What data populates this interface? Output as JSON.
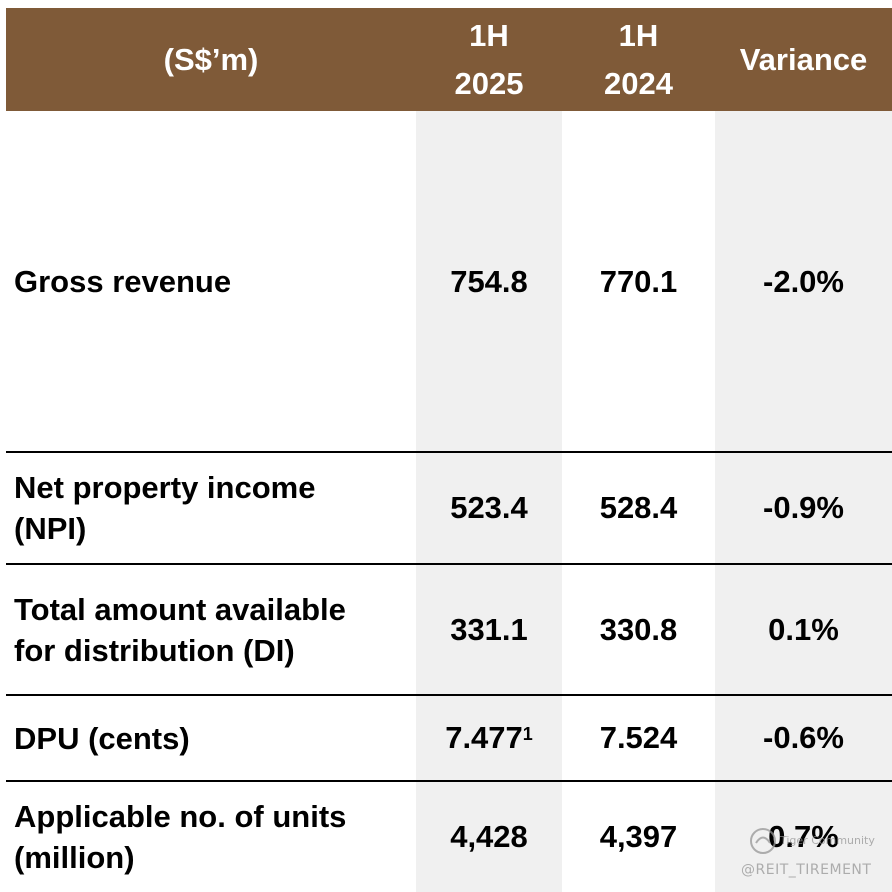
{
  "header": {
    "unit_label": "(S$’m)",
    "col1_line1": "1H",
    "col1_line2": "2025",
    "col2_line1": "1H",
    "col2_line2": "2024",
    "col3": "Variance"
  },
  "rows": [
    {
      "label": "Gross revenue",
      "v2025": "754.8",
      "v2024": "770.1",
      "variance": "-2.0%"
    },
    {
      "label_line1": "Net property income",
      "label_line2": "(NPI)",
      "v2025": "523.4",
      "v2024": "528.4",
      "variance": "-0.9%"
    },
    {
      "label_line1": "Total amount available",
      "label_line2": "for distribution (DI)",
      "v2025": "331.1",
      "v2024": "330.8",
      "variance": "0.1%"
    },
    {
      "label": "DPU (cents)",
      "v2025": "7.477",
      "footnote": "1",
      "v2024": "7.524",
      "variance": "-0.6%"
    },
    {
      "label_line1": "Applicable no. of units",
      "label_line2": "(million)",
      "v2025": "4,428",
      "v2024": "4,397",
      "variance": "0.7%"
    }
  ],
  "watermark": {
    "brand": "Tiger Community",
    "handle": "@REIT_TIREMENT"
  }
}
